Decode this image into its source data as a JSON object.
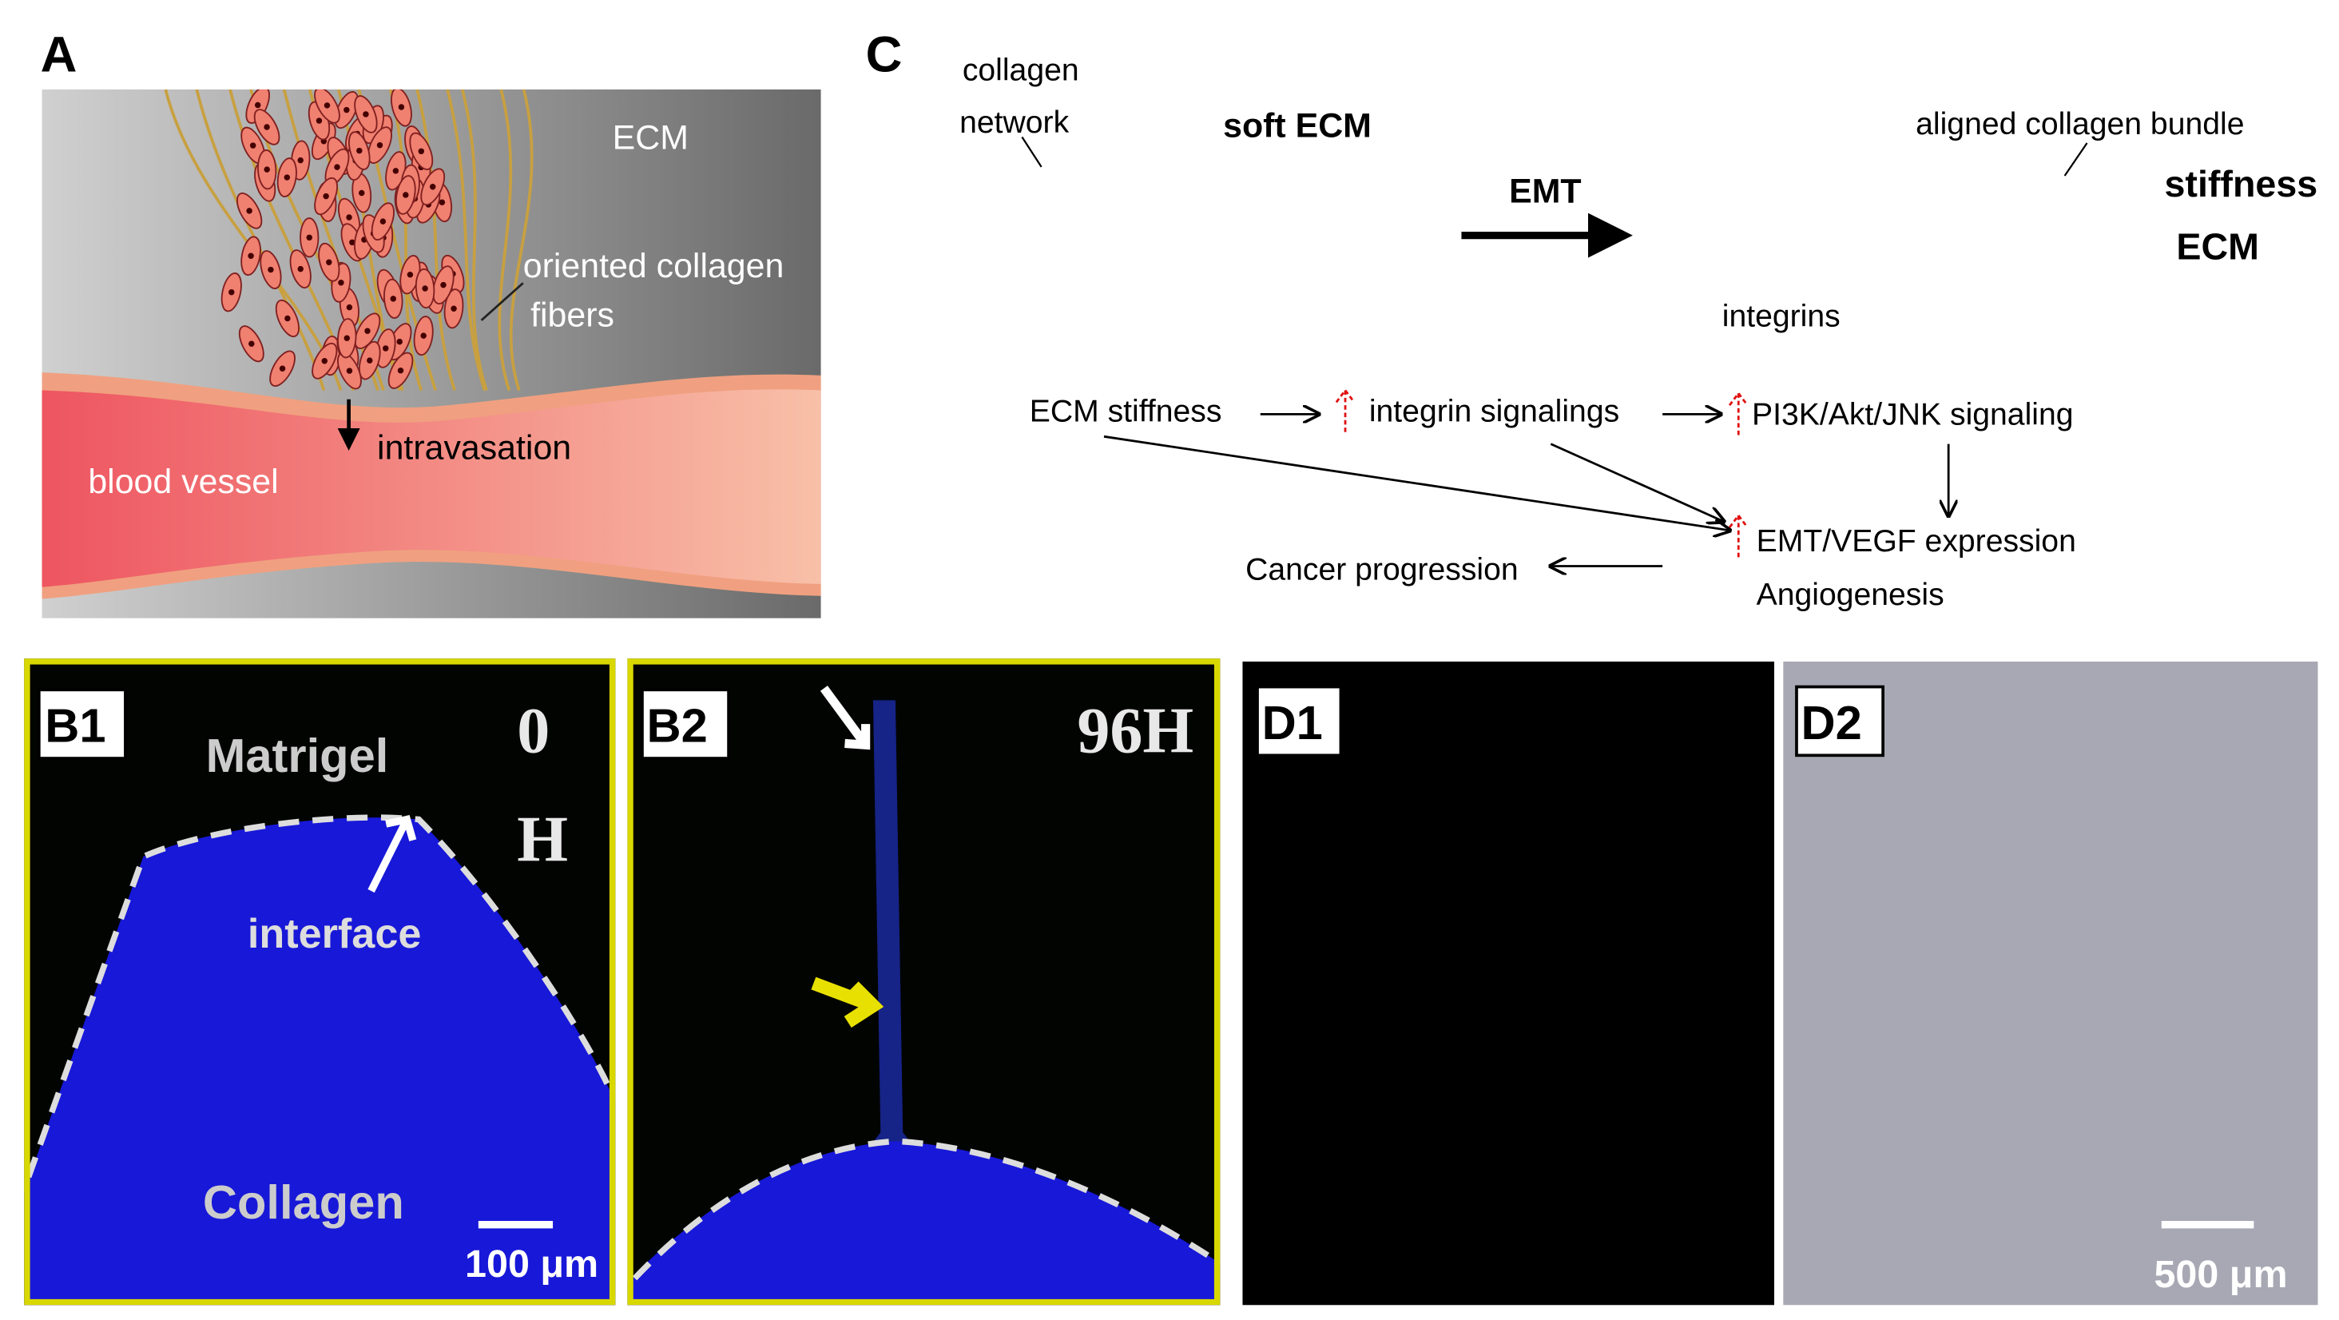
{
  "panel_a": {
    "label": "A",
    "ecm": "ECM",
    "fibers_line1": "oriented collagen",
    "fibers_line2": "fibers",
    "intravasation": "intravasation",
    "vessel": "blood vessel"
  },
  "panel_c": {
    "label": "C",
    "collagen_line1": "collagen",
    "collagen_line2": "network",
    "soft": "soft ECM",
    "emt": "EMT",
    "aligned": "aligned collagen bundle",
    "stiffness": "stiffness",
    "ecm": "ECM",
    "integrins": "integrins",
    "ecm_stiffness": "ECM stiffness",
    "integrin_signalings": "integrin signalings",
    "pi3k": "PI3K/Akt/JNK signaling",
    "emt_vegf": "EMT/VEGF expression",
    "angiogenesis": "Angiogenesis",
    "cancer": "Cancer progression"
  },
  "panel_b1": {
    "label": "B1",
    "matrigel": "Matrigel",
    "time_line1": "0",
    "time_line2": "H",
    "interface": "interface",
    "collagen": "Collagen",
    "scale": "100 μm"
  },
  "panel_b2": {
    "label": "B2",
    "time": "96H"
  },
  "panel_d1": {
    "label": "D1"
  },
  "panel_d2": {
    "label": "D2",
    "scale": "500 μm"
  }
}
